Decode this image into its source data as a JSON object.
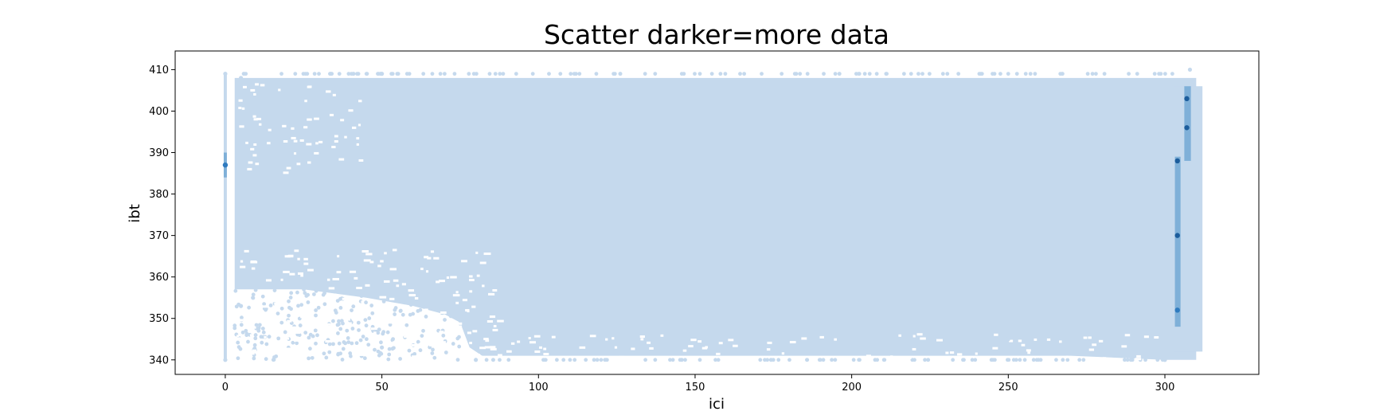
{
  "chart_data": {
    "type": "scatter",
    "title": "Scatter darker=more data",
    "xlabel": "ici",
    "ylabel": "ibt",
    "xlim": [
      -16,
      330
    ],
    "ylim": [
      336.5,
      414.5
    ],
    "xticks": [
      "0",
      "50",
      "100",
      "150",
      "200",
      "250",
      "300"
    ],
    "yticks": [
      "340",
      "350",
      "360",
      "370",
      "380",
      "390",
      "400",
      "410"
    ],
    "grid": false,
    "legend": "none",
    "colors": {
      "light": "#c5d9ed",
      "medium": "#7fb0d8",
      "dark": "#2f7bbf",
      "darkest": "#1c5d9c"
    },
    "series": [
      {
        "name": "",
        "values": [
          {
            "x": 0,
            "y": 340,
            "density": "low"
          },
          {
            "x": 0,
            "y": 387,
            "density": "medium"
          },
          {
            "x": 0,
            "y": 409,
            "density": "low"
          },
          {
            "x": 5,
            "y": 408,
            "density": "low"
          },
          {
            "x": 5,
            "y": 353,
            "density": "low"
          },
          {
            "x": 50,
            "y": 409,
            "density": "low"
          },
          {
            "x": 50,
            "y": 343,
            "density": "low"
          },
          {
            "x": 80,
            "y": 340,
            "density": "low"
          },
          {
            "x": 150,
            "y": 375,
            "density": "low"
          },
          {
            "x": 200,
            "y": 380,
            "density": "low"
          },
          {
            "x": 250,
            "y": 345,
            "density": "low"
          },
          {
            "x": 300,
            "y": 340,
            "density": "low"
          },
          {
            "x": 304,
            "y": 388,
            "density": "high"
          },
          {
            "x": 304,
            "y": 370,
            "density": "high"
          },
          {
            "x": 304,
            "y": 352,
            "density": "medium"
          },
          {
            "x": 307,
            "y": 403,
            "density": "high"
          },
          {
            "x": 307,
            "y": 396,
            "density": "high"
          },
          {
            "x": 308,
            "y": 410,
            "density": "low"
          },
          {
            "x": 311,
            "y": 356,
            "density": "low"
          }
        ]
      }
    ]
  }
}
